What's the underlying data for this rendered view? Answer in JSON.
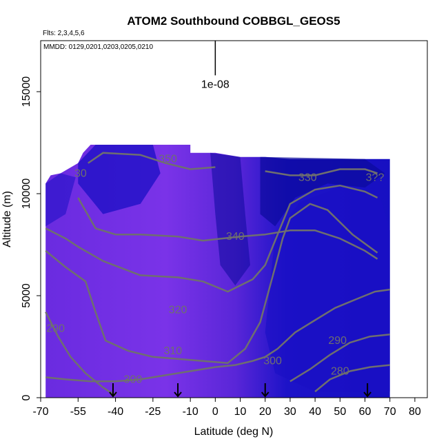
{
  "chart_data": {
    "type": "heatmap",
    "title": "ATOM2 Southbound COBBGL_GEOS5",
    "subtitle_flights": "Flts: 2,3,4,5,6",
    "subtitle_dates": "MMDD: 0129,0201,0203,0205,0210",
    "xlabel": "Latitude (deg N)",
    "ylabel": "Altitude (m)",
    "xlim": [
      -70,
      85
    ],
    "ylim": [
      0,
      17500
    ],
    "x_ticks": [
      -70,
      -55,
      -40,
      -25,
      -10,
      0,
      10,
      20,
      30,
      40,
      50,
      60,
      70,
      80
    ],
    "y_ticks": [
      0,
      5000,
      10000,
      15000
    ],
    "scale_bar": {
      "label": "1e-08",
      "x": 0,
      "y_top": 17500,
      "y_bottom": 15800
    },
    "flight_markers_lat": [
      -41,
      -15,
      20,
      61
    ],
    "contour_levels": [
      280,
      290,
      300,
      310,
      320,
      330,
      340,
      350
    ],
    "contour_labels": [
      {
        "text": "350",
        "x": -19,
        "y": 11700
      },
      {
        "text": "330",
        "x": 37,
        "y": 10800
      },
      {
        "text": "340",
        "x": 8,
        "y": 7900
      },
      {
        "text": "320",
        "x": -15,
        "y": 4300
      },
      {
        "text": "310",
        "x": -17,
        "y": 2300
      },
      {
        "text": "300",
        "x": -33,
        "y": 900
      },
      {
        "text": "300",
        "x": 23,
        "y": 1800
      },
      {
        "text": "290",
        "x": -64,
        "y": 3400
      },
      {
        "text": "290",
        "x": 49,
        "y": 2800
      },
      {
        "text": "280",
        "x": 50,
        "y": 1300
      },
      {
        "text": "3??",
        "x": 64,
        "y": 10800
      },
      {
        "text": "30",
        "x": -54,
        "y": 11000
      }
    ],
    "contours": [
      {
        "level": 350,
        "points": [
          [
            -51,
            11500
          ],
          [
            -45,
            12000
          ],
          [
            -30,
            11900
          ],
          [
            -20,
            11500
          ],
          [
            -10,
            11200
          ],
          [
            0,
            11300
          ]
        ]
      },
      {
        "level": 330,
        "points": [
          [
            20,
            11100
          ],
          [
            30,
            10900
          ],
          [
            40,
            10900
          ],
          [
            50,
            11200
          ],
          [
            60,
            11200
          ],
          [
            65,
            11000
          ]
        ]
      },
      {
        "level": 340,
        "points": [
          [
            -55,
            9800
          ],
          [
            -48,
            8300
          ],
          [
            -40,
            8000
          ],
          [
            -30,
            8000
          ],
          [
            -15,
            7900
          ],
          [
            -5,
            7700
          ],
          [
            10,
            7900
          ],
          [
            20,
            8000
          ],
          [
            30,
            8200
          ],
          [
            40,
            8200
          ],
          [
            50,
            7800
          ],
          [
            60,
            7200
          ],
          [
            65,
            6800
          ]
        ]
      },
      {
        "level": 320,
        "points": [
          [
            -68,
            8300
          ],
          [
            -60,
            7800
          ],
          [
            -55,
            7400
          ],
          [
            -45,
            6700
          ],
          [
            -30,
            6000
          ],
          [
            -15,
            5900
          ],
          [
            -5,
            5700
          ],
          [
            5,
            5200
          ],
          [
            15,
            5800
          ],
          [
            20,
            6500
          ],
          [
            25,
            8000
          ],
          [
            30,
            9500
          ],
          [
            40,
            10200
          ],
          [
            50,
            10400
          ],
          [
            60,
            10100
          ],
          [
            65,
            9800
          ]
        ]
      },
      {
        "level": 310,
        "points": [
          [
            -68,
            7200
          ],
          [
            -60,
            6400
          ],
          [
            -52,
            5700
          ],
          [
            -48,
            4200
          ],
          [
            -44,
            2800
          ],
          [
            -35,
            2300
          ],
          [
            -25,
            2000
          ],
          [
            -15,
            1900
          ],
          [
            -5,
            1800
          ],
          [
            5,
            1700
          ],
          [
            12,
            2400
          ],
          [
            18,
            3700
          ],
          [
            24,
            6400
          ],
          [
            27,
            7800
          ],
          [
            30,
            8800
          ],
          [
            38,
            9500
          ],
          [
            45,
            9200
          ],
          [
            55,
            8000
          ],
          [
            65,
            7100
          ]
        ]
      },
      {
        "level": 300,
        "points": [
          [
            -68,
            1000
          ],
          [
            -60,
            900
          ],
          [
            -50,
            800
          ],
          [
            -40,
            800
          ],
          [
            -30,
            900
          ],
          [
            -20,
            1100
          ],
          [
            -10,
            1300
          ],
          [
            0,
            1500
          ],
          [
            8,
            1600
          ],
          [
            15,
            1800
          ],
          [
            20,
            2000
          ],
          [
            25,
            2400
          ],
          [
            32,
            3200
          ],
          [
            40,
            3800
          ],
          [
            48,
            4400
          ],
          [
            56,
            4800
          ],
          [
            64,
            5200
          ],
          [
            70,
            5300
          ]
        ]
      },
      {
        "level": 290,
        "points": [
          [
            -68,
            4200
          ],
          [
            -63,
            3000
          ],
          [
            -58,
            2000
          ],
          [
            -52,
            1200
          ],
          [
            -45,
            500
          ],
          [
            -40,
            100
          ]
        ]
      },
      {
        "level": 290,
        "points": [
          [
            30,
            800
          ],
          [
            38,
            1400
          ],
          [
            46,
            2100
          ],
          [
            54,
            2700
          ],
          [
            62,
            3000
          ],
          [
            70,
            3100
          ]
        ]
      },
      {
        "level": 280,
        "points": [
          [
            40,
            300
          ],
          [
            46,
            900
          ],
          [
            54,
            1300
          ],
          [
            62,
            1500
          ],
          [
            70,
            1600
          ]
        ]
      }
    ],
    "colors": {
      "background_violet": "#7a2ee6",
      "dark_blue": "#1a0fc4",
      "navy": "#0c0a9c",
      "contour_line": "#6f6f6f",
      "axis": "#000000"
    }
  }
}
